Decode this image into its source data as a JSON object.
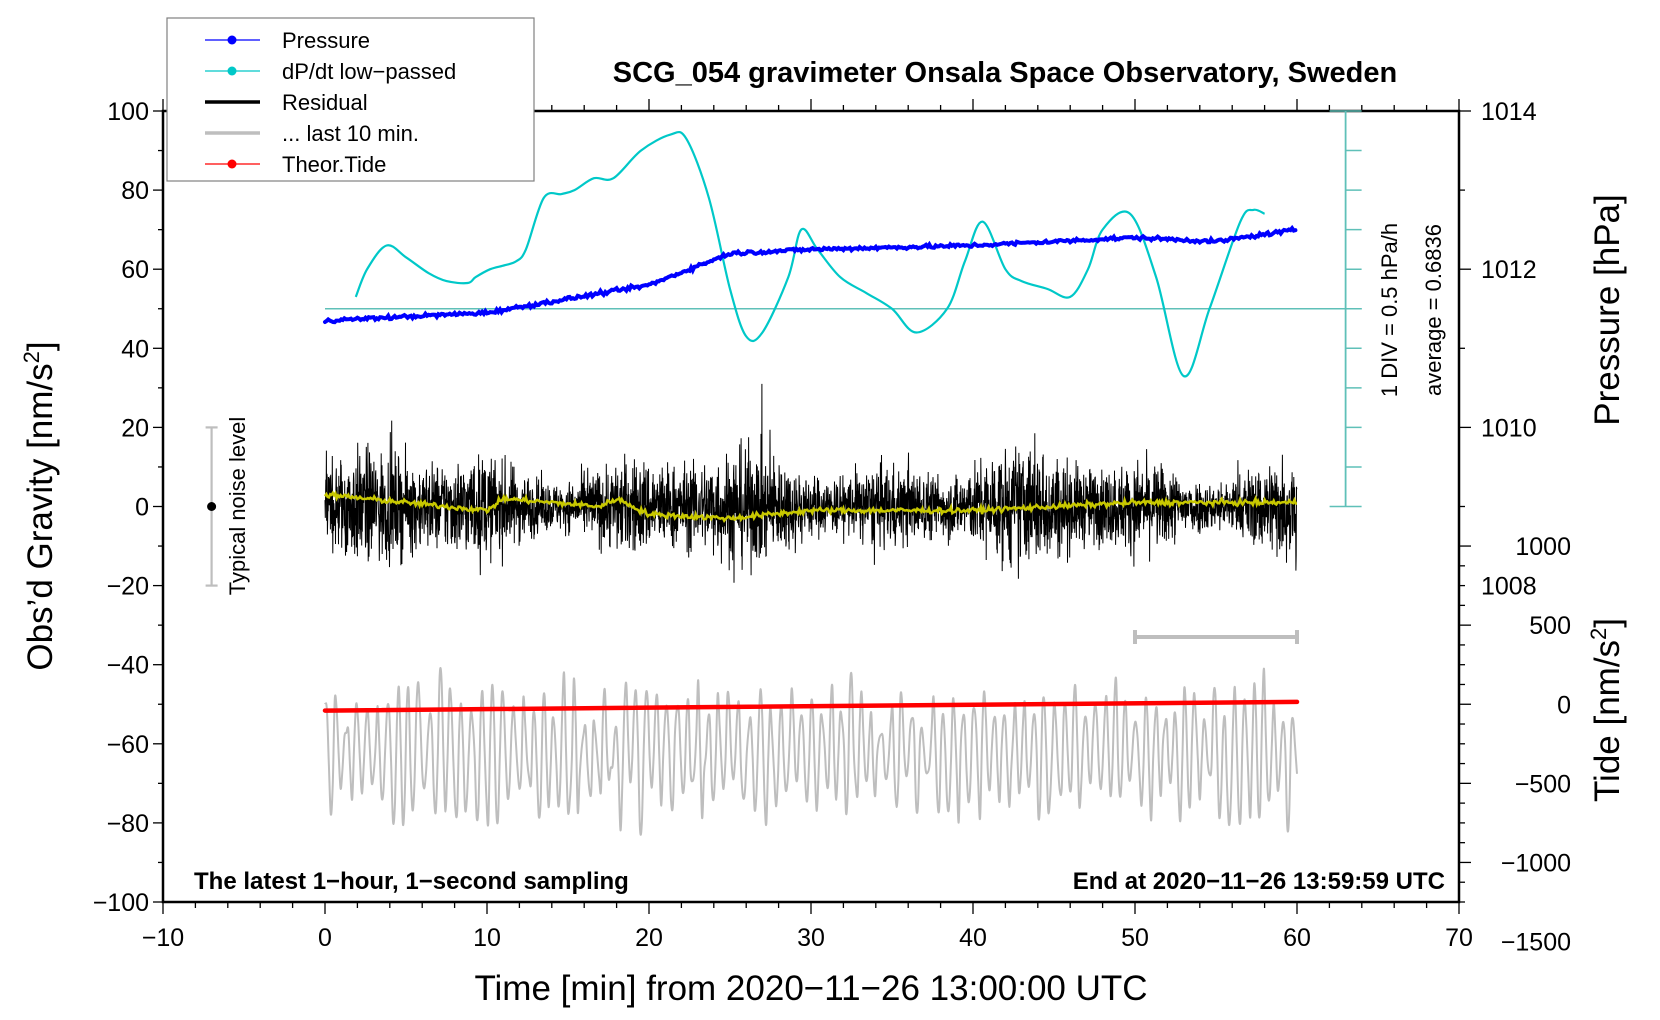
{
  "chart_data": {
    "type": "line",
    "title": "SCG_054 gravimeter Onsala Space Observatory, Sweden",
    "xlabel": "Time [min] from 2020−11−26 13:00:00 UTC",
    "ylabel_left": "Obs’d Gravity [nm/s",
    "ylabel_left_sup": "2",
    "ylabel_left_tail": "]",
    "ylabel_right_pressure": "Pressure [hPa]",
    "ylabel_right_tide": "Tide [nm/s",
    "ylabel_right_tide_sup": "2",
    "ylabel_right_tide_tail": "]",
    "xlim": [
      -10,
      70
    ],
    "ylim": [
      -100,
      100
    ],
    "grid": false,
    "x_ticks": [
      -10,
      0,
      10,
      20,
      30,
      40,
      50,
      60,
      70
    ],
    "x_tick_labels": [
      "−10",
      "0",
      "10",
      "20",
      "30",
      "40",
      "50",
      "60",
      "70"
    ],
    "y_ticks": [
      -100,
      -80,
      -60,
      -40,
      -20,
      0,
      20,
      40,
      60,
      80,
      100
    ],
    "y_tick_labels": [
      "−100",
      "−80",
      "−60",
      "−40",
      "−20",
      "0",
      "20",
      "40",
      "60",
      "80",
      "100"
    ],
    "pressure_axis": {
      "ticks": [
        1008,
        1010,
        1012,
        1014
      ],
      "tick_labels": [
        "1008",
        "1010",
        "1012",
        "1014"
      ],
      "mapping": {
        "hPa_at_y60": 1012,
        "units_per_hPa": 20
      }
    },
    "tide_axis": {
      "ticks": [
        -1500,
        -1000,
        -500,
        0,
        500,
        1000
      ],
      "tick_labels": [
        "−1500",
        "−1000",
        "−500",
        "0",
        "500",
        "1000"
      ],
      "mapping": {
        "tide_at_y_minus50": 0,
        "nm_per_unit": 25
      }
    },
    "legend": {
      "position": "top-left",
      "entries": [
        {
          "label": "Pressure",
          "color": "#0000ff",
          "marker": "dot"
        },
        {
          "label": "dP/dt low−passed",
          "color": "#00c8c8",
          "marker": "dot"
        },
        {
          "label": "Residual",
          "color": "#000000",
          "marker": "none"
        },
        {
          "label": "... last 10 min.",
          "color": "#bebebe",
          "marker": "none"
        },
        {
          "label": "Theor.Tide",
          "color": "#ff0000",
          "marker": "dot"
        }
      ]
    },
    "series": [
      {
        "name": "Pressure",
        "color": "#0000ff",
        "axis": "pressure",
        "x": [
          0,
          10,
          20,
          25,
          30,
          40,
          50,
          55,
          60
        ],
        "values_hPa": [
          1011.35,
          1011.45,
          1011.8,
          1012.2,
          1012.25,
          1012.3,
          1012.4,
          1012.35,
          1012.5
        ]
      },
      {
        "name": "dP/dt low-passed",
        "color": "#00c8c8",
        "axis": "plot-units (baseline 50 = average, 1 DIV = 10 units = 0.5 hPa/h)",
        "x": [
          1.9,
          2.6,
          3.8,
          5.0,
          6.4,
          7.5,
          8.8,
          9.3,
          10.2,
          11.1,
          11.8,
          12.4,
          13.5,
          14.6,
          15.4,
          16.6,
          17.8,
          19.5,
          21.3,
          22.3,
          23.7,
          25.0,
          26.0,
          27.0,
          28.6,
          29.4,
          30.4,
          31.8,
          33.4,
          35.0,
          36.5,
          38.4,
          39.5,
          40.6,
          42.0,
          43.0,
          44.6,
          46.0,
          47.1,
          48.0,
          49.7,
          51.3,
          53.0,
          54.6,
          56.5,
          57.3,
          58.0
        ],
        "values": [
          53,
          60,
          66,
          63,
          59,
          57,
          56.5,
          58,
          60,
          61,
          62,
          65,
          78,
          79,
          80,
          83,
          83,
          90,
          94,
          93,
          78,
          55,
          43,
          44,
          58,
          70,
          65,
          58,
          54,
          50,
          44,
          50,
          62,
          72,
          60,
          57,
          55,
          53,
          60,
          70,
          74,
          58,
          33,
          50,
          72,
          75,
          74
        ]
      },
      {
        "name": "Residual",
        "color": "#000000",
        "x_range": [
          0,
          60
        ],
        "approx_amplitude": 20,
        "extremes": {
          "max": 31,
          "min": -32
        }
      },
      {
        "name": "Residual smoothed",
        "color": "#c8c800",
        "x": [
          0,
          5,
          10,
          11,
          17,
          18,
          20,
          25,
          30,
          35,
          40,
          45,
          50,
          55,
          60
        ],
        "values": [
          3,
          1,
          -1,
          2,
          0,
          2,
          -2,
          -3,
          -1,
          -1,
          -1,
          0,
          1,
          1,
          1
        ]
      },
      {
        "name": "... last 10 min.",
        "color": "#bebebe",
        "x_range": [
          0,
          60
        ],
        "center": -62,
        "approx_amplitude": 15,
        "extremes": {
          "max": -35,
          "min": -92
        }
      },
      {
        "name": "Theor.Tide",
        "color": "#ff0000",
        "axis": "tide",
        "x": [
          0,
          60
        ],
        "values_nm_s2": [
          -40,
          15
        ]
      }
    ],
    "annotations": {
      "noise_label": "Typical noise level",
      "noise_bar": {
        "x": -7,
        "center": 0,
        "half_range": 20
      },
      "scale_bar_10min": {
        "x_from": 50,
        "x_to": 60,
        "y": -33
      },
      "dpdt_scale_label": "1 DIV = 0.5 hPa/h",
      "dpdt_average_label": "average = 0.6836",
      "dpdt_scale_bar": {
        "x": 63,
        "from": 0,
        "to": 100,
        "div": 10,
        "baseline": 50
      },
      "bottom_left": "The latest 1−hour, 1−second sampling",
      "bottom_right": "End at 2020−11−26 13:59:59 UTC"
    }
  }
}
